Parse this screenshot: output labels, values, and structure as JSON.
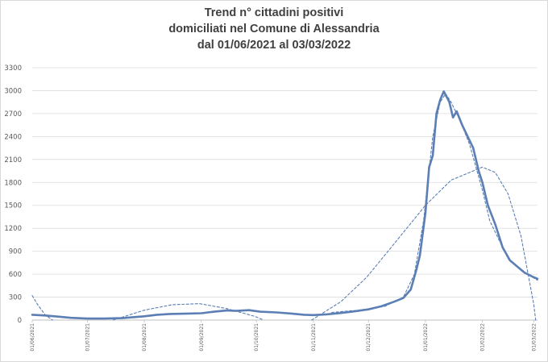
{
  "chart_data": {
    "type": "line",
    "title": [
      "Trend n° cittadini positivi",
      "domiciliati nel Comune di Alessandria",
      "dal 01/06/2021 al 03/03/2022"
    ],
    "xlabel": "",
    "ylabel": "",
    "ylim": [
      0,
      3300
    ],
    "yticks": [
      "0",
      "300",
      "600",
      "900",
      "1200",
      "1500",
      "1800",
      "2100",
      "2400",
      "2700",
      "3000",
      "3300"
    ],
    "x_axis": {
      "type": "date",
      "start": "2021-06-01",
      "end": "2022-03-03"
    },
    "xticks": [
      "01/06/2021",
      "01/07/2021",
      "01/08/2021",
      "01/09/2021",
      "01/10/2021",
      "01/11/2021",
      "01/12/2021",
      "01/01/2022",
      "01/02/2022",
      "01/03/2022"
    ],
    "grid": true,
    "legend": "none",
    "colors": {
      "series": "#5b7fb5",
      "grid": "#dcdcdc",
      "axis": "#bfbfbf"
    },
    "series": [
      {
        "style": "solid",
        "points": [
          [
            "2021-06-01",
            70
          ],
          [
            "2021-06-08",
            60
          ],
          [
            "2021-06-15",
            45
          ],
          [
            "2021-06-22",
            30
          ],
          [
            "2021-07-01",
            20
          ],
          [
            "2021-07-10",
            20
          ],
          [
            "2021-07-20",
            25
          ],
          [
            "2021-08-01",
            50
          ],
          [
            "2021-08-08",
            70
          ],
          [
            "2021-08-15",
            80
          ],
          [
            "2021-08-25",
            85
          ],
          [
            "2021-09-01",
            90
          ],
          [
            "2021-09-08",
            110
          ],
          [
            "2021-09-15",
            125
          ],
          [
            "2021-09-20",
            120
          ],
          [
            "2021-09-27",
            130
          ],
          [
            "2021-10-03",
            110
          ],
          [
            "2021-10-12",
            100
          ],
          [
            "2021-10-20",
            85
          ],
          [
            "2021-10-27",
            70
          ],
          [
            "2021-11-01",
            65
          ],
          [
            "2021-11-08",
            75
          ],
          [
            "2021-11-15",
            90
          ],
          [
            "2021-11-22",
            110
          ],
          [
            "2021-12-01",
            140
          ],
          [
            "2021-12-08",
            180
          ],
          [
            "2021-12-15",
            240
          ],
          [
            "2021-12-20",
            290
          ],
          [
            "2021-12-24",
            400
          ],
          [
            "2021-12-27",
            650
          ],
          [
            "2021-12-29",
            850
          ],
          [
            "2022-01-01",
            1400
          ],
          [
            "2022-01-03",
            2000
          ],
          [
            "2022-01-05",
            2150
          ],
          [
            "2022-01-07",
            2700
          ],
          [
            "2022-01-09",
            2880
          ],
          [
            "2022-01-11",
            2990
          ],
          [
            "2022-01-14",
            2850
          ],
          [
            "2022-01-16",
            2650
          ],
          [
            "2022-01-18",
            2730
          ],
          [
            "2022-01-21",
            2550
          ],
          [
            "2022-01-24",
            2400
          ],
          [
            "2022-01-27",
            2250
          ],
          [
            "2022-01-30",
            1950
          ],
          [
            "2022-02-01",
            1800
          ],
          [
            "2022-02-04",
            1500
          ],
          [
            "2022-02-08",
            1250
          ],
          [
            "2022-02-12",
            950
          ],
          [
            "2022-02-16",
            780
          ],
          [
            "2022-02-20",
            700
          ],
          [
            "2022-02-24",
            620
          ],
          [
            "2022-02-28",
            570
          ],
          [
            "2022-03-03",
            540
          ]
        ]
      },
      {
        "style": "dashed",
        "points": [
          [
            "2021-06-01",
            320
          ],
          [
            "2021-06-04",
            200
          ],
          [
            "2021-06-08",
            70
          ],
          [
            "2021-06-12",
            0
          ]
        ]
      },
      {
        "style": "dashed",
        "points": [
          [
            "2021-07-15",
            0
          ],
          [
            "2021-08-01",
            130
          ],
          [
            "2021-08-16",
            200
          ],
          [
            "2021-08-31",
            215
          ],
          [
            "2021-09-15",
            150
          ],
          [
            "2021-09-30",
            50
          ],
          [
            "2021-10-05",
            0
          ]
        ]
      },
      {
        "style": "dashed",
        "points": [
          [
            "2021-10-31",
            0
          ],
          [
            "2021-11-16",
            240
          ],
          [
            "2021-11-30",
            560
          ],
          [
            "2021-12-15",
            1000
          ],
          [
            "2022-01-01",
            1500
          ],
          [
            "2022-01-15",
            1830
          ],
          [
            "2022-02-01",
            2000
          ],
          [
            "2022-02-08",
            1930
          ],
          [
            "2022-02-15",
            1650
          ],
          [
            "2022-02-22",
            1100
          ],
          [
            "2022-03-01",
            200
          ],
          [
            "2022-03-02",
            0
          ]
        ]
      },
      {
        "style": "dashed",
        "points": [
          [
            "2021-11-11",
            100
          ],
          [
            "2021-11-26",
            130
          ],
          [
            "2021-12-10",
            180
          ],
          [
            "2021-12-20",
            300
          ],
          [
            "2021-12-26",
            600
          ],
          [
            "2021-12-31",
            1300
          ],
          [
            "2022-01-05",
            2400
          ],
          [
            "2022-01-09",
            2850
          ],
          [
            "2022-01-12",
            2960
          ],
          [
            "2022-01-15",
            2850
          ],
          [
            "2022-01-20",
            2600
          ],
          [
            "2022-01-25",
            2300
          ],
          [
            "2022-02-01",
            1700
          ],
          [
            "2022-02-05",
            1300
          ],
          [
            "2022-02-15",
            800
          ],
          [
            "2022-02-22",
            650
          ],
          [
            "2022-03-01",
            550
          ],
          [
            "2022-03-03",
            520
          ]
        ]
      }
    ]
  }
}
